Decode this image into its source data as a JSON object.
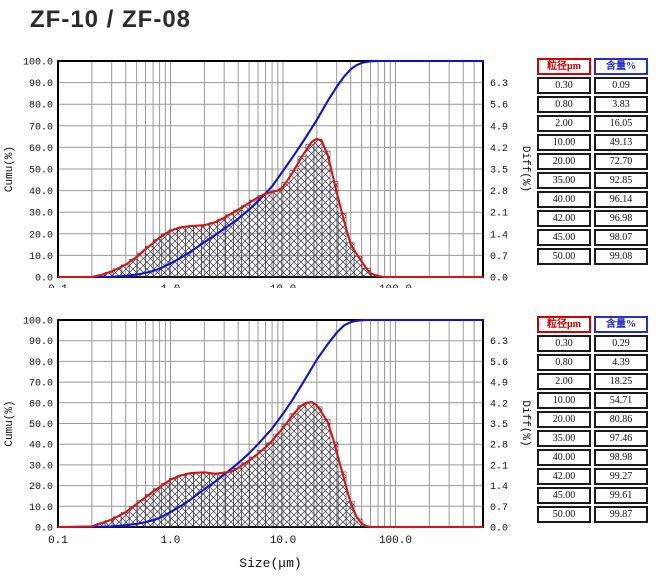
{
  "page": {
    "title": "ZF-10 / ZF-08"
  },
  "colors": {
    "cumulative": "#1111d6",
    "differential": "#d81414",
    "grid": "#999999",
    "frame": "#000000",
    "hatch": "#3a3a4a",
    "table_header_size": "#cf0000",
    "table_header_content": "#2430c8"
  },
  "axes": {
    "x": {
      "scale": "log",
      "min": 0.1,
      "max": 600,
      "title": "Size(μm)",
      "tick_values": [
        0.1,
        1,
        10,
        100
      ],
      "tick_labels": [
        "0.1",
        "1.0",
        "10.0",
        "100.0"
      ]
    },
    "y_left": {
      "min": 0,
      "max": 100,
      "title": "Cumu(%)",
      "tick_labels": [
        "100.0",
        "90.0",
        "80.0",
        "70.0",
        "60.0",
        "50.0",
        "40.0",
        "30.0",
        "20.0",
        "10.0",
        "0.0"
      ]
    },
    "y_right": {
      "min": 0,
      "max": 7,
      "title": "Diff(%)",
      "tick_labels": [
        "6.3",
        "5.6",
        "4.9",
        "4.2",
        "3.5",
        "2.8",
        "2.1",
        "1.4",
        "0.7",
        "0.0"
      ]
    }
  },
  "chart_data": [
    {
      "type": "line",
      "position": "top",
      "xlabel": "Size(μm)",
      "ylabel_left": "Cumu(%)",
      "ylabel_right": "Diff(%)",
      "xlim": [
        0.1,
        600
      ],
      "ylim_left": [
        0,
        100
      ],
      "ylim_right": [
        0,
        7
      ],
      "grid": true,
      "series": [
        {
          "name": "cumulative",
          "axis": "left",
          "color": "#1111d6",
          "points": [
            [
              0.1,
              0
            ],
            [
              0.2,
              0.02
            ],
            [
              0.25,
              0.05
            ],
            [
              0.3,
              0.09
            ],
            [
              0.4,
              0.5
            ],
            [
              0.5,
              1.1
            ],
            [
              0.6,
              1.9
            ],
            [
              0.7,
              2.8
            ],
            [
              0.8,
              3.83
            ],
            [
              1.0,
              6.3
            ],
            [
              1.2,
              8.5
            ],
            [
              1.5,
              11.6
            ],
            [
              2.0,
              16.05
            ],
            [
              2.5,
              19.5
            ],
            [
              3.0,
              22.3
            ],
            [
              4.0,
              27.0
            ],
            [
              5.0,
              31.2
            ],
            [
              6.0,
              35.0
            ],
            [
              8.0,
              42.0
            ],
            [
              10.0,
              49.13
            ],
            [
              12,
              55
            ],
            [
              15,
              62.5
            ],
            [
              20,
              72.7
            ],
            [
              25,
              81.5
            ],
            [
              30,
              88
            ],
            [
              35,
              92.85
            ],
            [
              40,
              96.14
            ],
            [
              42,
              96.98
            ],
            [
              45,
              98.07
            ],
            [
              50,
              99.08
            ],
            [
              55,
              99.6
            ],
            [
              60,
              99.85
            ],
            [
              70,
              100
            ],
            [
              600,
              100
            ]
          ]
        },
        {
          "name": "differential",
          "axis": "right",
          "color": "#d81414",
          "fill": "crosshatch-histogram",
          "points": [
            [
              0.1,
              0
            ],
            [
              0.2,
              0
            ],
            [
              0.25,
              0.08
            ],
            [
              0.3,
              0.18
            ],
            [
              0.4,
              0.4
            ],
            [
              0.5,
              0.65
            ],
            [
              0.6,
              0.9
            ],
            [
              0.7,
              1.1
            ],
            [
              0.8,
              1.28
            ],
            [
              0.9,
              1.4
            ],
            [
              1.0,
              1.5
            ],
            [
              1.2,
              1.6
            ],
            [
              1.5,
              1.65
            ],
            [
              2.0,
              1.68
            ],
            [
              2.5,
              1.78
            ],
            [
              3.0,
              1.92
            ],
            [
              4.0,
              2.18
            ],
            [
              5.0,
              2.4
            ],
            [
              6.0,
              2.58
            ],
            [
              7.0,
              2.7
            ],
            [
              8.0,
              2.76
            ],
            [
              9.0,
              2.8
            ],
            [
              10,
              2.92
            ],
            [
              12,
              3.35
            ],
            [
              15,
              3.95
            ],
            [
              18,
              4.38
            ],
            [
              20,
              4.48
            ],
            [
              22,
              4.42
            ],
            [
              25,
              3.95
            ],
            [
              28,
              3.2
            ],
            [
              30,
              2.75
            ],
            [
              35,
              1.8
            ],
            [
              40,
              1.05
            ],
            [
              45,
              0.75
            ],
            [
              50,
              0.5
            ],
            [
              55,
              0.28
            ],
            [
              60,
              0.12
            ],
            [
              70,
              0.03
            ],
            [
              80,
              0
            ],
            [
              600,
              0
            ]
          ]
        }
      ]
    },
    {
      "type": "line",
      "position": "bottom",
      "xlabel": "Size(μm)",
      "ylabel_left": "Cumu(%)",
      "ylabel_right": "Diff(%)",
      "xlim": [
        0.1,
        600
      ],
      "ylim_left": [
        0,
        100
      ],
      "ylim_right": [
        0,
        7
      ],
      "grid": true,
      "series": [
        {
          "name": "cumulative",
          "axis": "left",
          "color": "#1111d6",
          "points": [
            [
              0.1,
              0
            ],
            [
              0.2,
              0.05
            ],
            [
              0.3,
              0.29
            ],
            [
              0.4,
              0.85
            ],
            [
              0.5,
              1.5
            ],
            [
              0.6,
              2.3
            ],
            [
              0.7,
              3.3
            ],
            [
              0.8,
              4.39
            ],
            [
              1.0,
              7.2
            ],
            [
              1.2,
              9.7
            ],
            [
              1.5,
              13.2
            ],
            [
              2.0,
              18.25
            ],
            [
              2.5,
              22
            ],
            [
              3.0,
              25.3
            ],
            [
              4.0,
              30.8
            ],
            [
              5.0,
              35.6
            ],
            [
              6.0,
              40
            ],
            [
              8.0,
              47.6
            ],
            [
              10,
              54.71
            ],
            [
              12,
              61
            ],
            [
              15,
              69.5
            ],
            [
              20,
              80.86
            ],
            [
              25,
              88.3
            ],
            [
              30,
              93.8
            ],
            [
              35,
              97.46
            ],
            [
              40,
              98.98
            ],
            [
              42,
              99.27
            ],
            [
              45,
              99.61
            ],
            [
              50,
              99.87
            ],
            [
              55,
              100
            ],
            [
              600,
              100
            ]
          ]
        },
        {
          "name": "differential",
          "axis": "right",
          "color": "#d81414",
          "fill": "crosshatch-histogram",
          "points": [
            [
              0.1,
              0
            ],
            [
              0.2,
              0.02
            ],
            [
              0.3,
              0.25
            ],
            [
              0.4,
              0.5
            ],
            [
              0.5,
              0.78
            ],
            [
              0.6,
              1.0
            ],
            [
              0.7,
              1.2
            ],
            [
              0.8,
              1.35
            ],
            [
              1.0,
              1.6
            ],
            [
              1.2,
              1.73
            ],
            [
              1.5,
              1.82
            ],
            [
              2.0,
              1.85
            ],
            [
              2.5,
              1.8
            ],
            [
              3.0,
              1.84
            ],
            [
              3.5,
              1.88
            ],
            [
              4.0,
              2.0
            ],
            [
              5.0,
              2.25
            ],
            [
              6.0,
              2.48
            ],
            [
              7.0,
              2.7
            ],
            [
              8.0,
              2.92
            ],
            [
              10,
              3.35
            ],
            [
              12,
              3.75
            ],
            [
              14,
              4.05
            ],
            [
              16,
              4.2
            ],
            [
              18,
              4.22
            ],
            [
              20,
              4.12
            ],
            [
              25,
              3.55
            ],
            [
              28,
              2.95
            ],
            [
              30,
              2.55
            ],
            [
              35,
              1.6
            ],
            [
              40,
              0.8
            ],
            [
              45,
              0.35
            ],
            [
              50,
              0.12
            ],
            [
              55,
              0.03
            ],
            [
              60,
              0
            ],
            [
              600,
              0
            ]
          ]
        }
      ]
    }
  ],
  "tables": [
    {
      "headers": [
        "粒径μm",
        "含量%"
      ],
      "rows": [
        [
          "0.30",
          "0.09"
        ],
        [
          "0.80",
          "3.83"
        ],
        [
          "2.00",
          "16.05"
        ],
        [
          "10.00",
          "49.13"
        ],
        [
          "20.00",
          "72.70"
        ],
        [
          "35.00",
          "92.85"
        ],
        [
          "40.00",
          "96.14"
        ],
        [
          "42.00",
          "96.98"
        ],
        [
          "45.00",
          "98.07"
        ],
        [
          "50.00",
          "99.08"
        ]
      ]
    },
    {
      "headers": [
        "粒径μm",
        "含量%"
      ],
      "rows": [
        [
          "0.30",
          "0.29"
        ],
        [
          "0.80",
          "4.39"
        ],
        [
          "2.00",
          "18.25"
        ],
        [
          "10.00",
          "54.71"
        ],
        [
          "20.00",
          "80.86"
        ],
        [
          "35.00",
          "97.46"
        ],
        [
          "40.00",
          "98.98"
        ],
        [
          "42.00",
          "99.27"
        ],
        [
          "45.00",
          "99.61"
        ],
        [
          "50.00",
          "99.87"
        ]
      ]
    }
  ]
}
